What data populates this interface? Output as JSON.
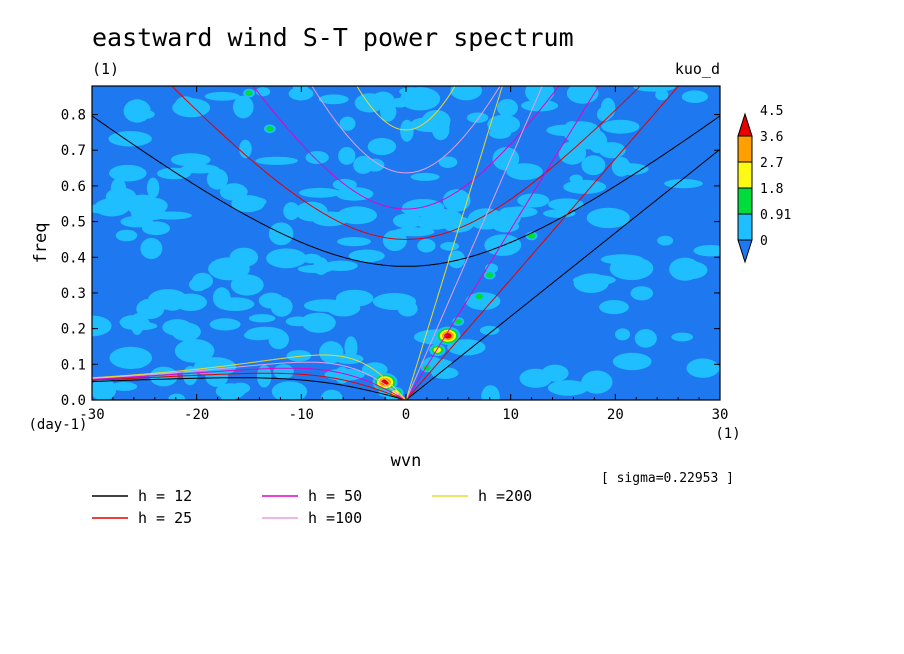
{
  "chart_data": {
    "type": "heatmap",
    "title": "eastward wind S-T power spectrum",
    "subtitle_left": "(1)",
    "subtitle_right": "kuo_d",
    "xlabel": "wvn",
    "ylabel": "freq",
    "x_unit": "(1)",
    "y_unit": "(day-1)",
    "xlim": [
      -30,
      30
    ],
    "ylim": [
      0,
      0.88
    ],
    "xticks": [
      -30,
      -20,
      -10,
      0,
      10,
      20,
      30
    ],
    "yticks": [
      0.0,
      0.1,
      0.2,
      0.3,
      0.4,
      0.5,
      0.6,
      0.7,
      0.8
    ],
    "sigma_note": "[ sigma=0.22953 ]",
    "colorbar": {
      "levels": [
        "0",
        "0.91",
        "1.8",
        "2.7",
        "3.6",
        "4.5"
      ],
      "colors": [
        "#1e78f0",
        "#1ebeff",
        "#00dc3c",
        "#fffa14",
        "#ffa000",
        "#e60000"
      ]
    },
    "dispersion_curves": [
      {
        "label": "h = 12",
        "h": 12,
        "color": "#000000"
      },
      {
        "label": "h = 25",
        "h": 25,
        "color": "#e60000"
      },
      {
        "label": "h = 50",
        "h": 50,
        "color": "#e600c8"
      },
      {
        "label": "h =100",
        "h": 100,
        "color": "#e6a0e6"
      },
      {
        "label": "h =200",
        "h": 200,
        "color": "#e6dc32"
      }
    ],
    "hotspots": [
      {
        "x": -2,
        "y": 0.05,
        "level": 5
      },
      {
        "x": 4,
        "y": 0.18,
        "level": 5
      },
      {
        "x": 3,
        "y": 0.14,
        "level": 3
      },
      {
        "x": 5,
        "y": 0.22,
        "level": 2
      },
      {
        "x": 7,
        "y": 0.29,
        "level": 2
      },
      {
        "x": 8,
        "y": 0.35,
        "level": 2
      },
      {
        "x": 12,
        "y": 0.46,
        "level": 2
      },
      {
        "x": -13,
        "y": 0.76,
        "level": 2
      },
      {
        "x": -15,
        "y": 0.86,
        "level": 2
      },
      {
        "x": 2,
        "y": 0.09,
        "level": 2
      },
      {
        "x": -1,
        "y": 0.02,
        "level": 3
      }
    ]
  }
}
